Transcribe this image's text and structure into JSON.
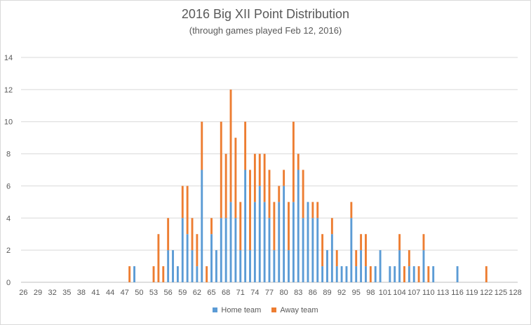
{
  "chart_data": {
    "type": "bar",
    "stacked": true,
    "title": "2016 Big XII Point Distribution",
    "subtitle": "(through games played Feb 12, 2016)",
    "xlabel": "",
    "ylabel": "",
    "ylim": [
      0,
      14
    ],
    "yticks": [
      "0",
      "2",
      "4",
      "6",
      "8",
      "10",
      "12",
      "14"
    ],
    "xticks": [
      "26",
      "29",
      "32",
      "35",
      "38",
      "41",
      "44",
      "47",
      "50",
      "53",
      "56",
      "59",
      "62",
      "65",
      "68",
      "71",
      "74",
      "77",
      "80",
      "83",
      "86",
      "89",
      "92",
      "95",
      "98",
      "101",
      "104",
      "107",
      "110",
      "113",
      "116",
      "119",
      "122",
      "125",
      "128"
    ],
    "grid": true,
    "legend_position": "bottom",
    "x_start": 26,
    "x_end": 128,
    "series": [
      {
        "name": "Home team",
        "color": "#5b9bd5",
        "points": [
          [
            49,
            1
          ],
          [
            56,
            2
          ],
          [
            57,
            2
          ],
          [
            58,
            1
          ],
          [
            59,
            4
          ],
          [
            60,
            3
          ],
          [
            61,
            2
          ],
          [
            62,
            1
          ],
          [
            63,
            7
          ],
          [
            65,
            3
          ],
          [
            66,
            2
          ],
          [
            67,
            4
          ],
          [
            68,
            4
          ],
          [
            69,
            5
          ],
          [
            70,
            4
          ],
          [
            71,
            2
          ],
          [
            72,
            7
          ],
          [
            73,
            2
          ],
          [
            74,
            5
          ],
          [
            75,
            6
          ],
          [
            76,
            5
          ],
          [
            77,
            4
          ],
          [
            78,
            2
          ],
          [
            79,
            5
          ],
          [
            80,
            6
          ],
          [
            81,
            2
          ],
          [
            82,
            5
          ],
          [
            83,
            7
          ],
          [
            84,
            4
          ],
          [
            85,
            5
          ],
          [
            86,
            4
          ],
          [
            87,
            4
          ],
          [
            88,
            1
          ],
          [
            89,
            2
          ],
          [
            90,
            3
          ],
          [
            91,
            1
          ],
          [
            92,
            1
          ],
          [
            93,
            1
          ],
          [
            94,
            4
          ],
          [
            95,
            1
          ],
          [
            96,
            2
          ],
          [
            97,
            1
          ],
          [
            99,
            1
          ],
          [
            100,
            2
          ],
          [
            102,
            1
          ],
          [
            103,
            1
          ],
          [
            104,
            2
          ],
          [
            106,
            1
          ],
          [
            107,
            1
          ],
          [
            109,
            2
          ],
          [
            111,
            1
          ],
          [
            116,
            1
          ]
        ]
      },
      {
        "name": "Away team",
        "color": "#ed7d31",
        "points": [
          [
            48,
            1
          ],
          [
            53,
            1
          ],
          [
            54,
            3
          ],
          [
            55,
            1
          ],
          [
            56,
            2
          ],
          [
            59,
            2
          ],
          [
            60,
            3
          ],
          [
            61,
            2
          ],
          [
            62,
            2
          ],
          [
            63,
            3
          ],
          [
            64,
            1
          ],
          [
            65,
            1
          ],
          [
            67,
            6
          ],
          [
            68,
            4
          ],
          [
            69,
            7
          ],
          [
            70,
            5
          ],
          [
            71,
            3
          ],
          [
            72,
            3
          ],
          [
            73,
            5
          ],
          [
            74,
            3
          ],
          [
            75,
            2
          ],
          [
            76,
            3
          ],
          [
            77,
            3
          ],
          [
            78,
            3
          ],
          [
            79,
            1
          ],
          [
            80,
            1
          ],
          [
            81,
            3
          ],
          [
            82,
            5
          ],
          [
            83,
            1
          ],
          [
            84,
            3
          ],
          [
            86,
            1
          ],
          [
            87,
            1
          ],
          [
            88,
            2
          ],
          [
            90,
            1
          ],
          [
            91,
            1
          ],
          [
            94,
            1
          ],
          [
            95,
            1
          ],
          [
            96,
            1
          ],
          [
            97,
            2
          ],
          [
            98,
            1
          ],
          [
            104,
            1
          ],
          [
            105,
            1
          ],
          [
            106,
            1
          ],
          [
            108,
            1
          ],
          [
            109,
            1
          ],
          [
            110,
            1
          ],
          [
            122,
            1
          ]
        ]
      }
    ]
  }
}
